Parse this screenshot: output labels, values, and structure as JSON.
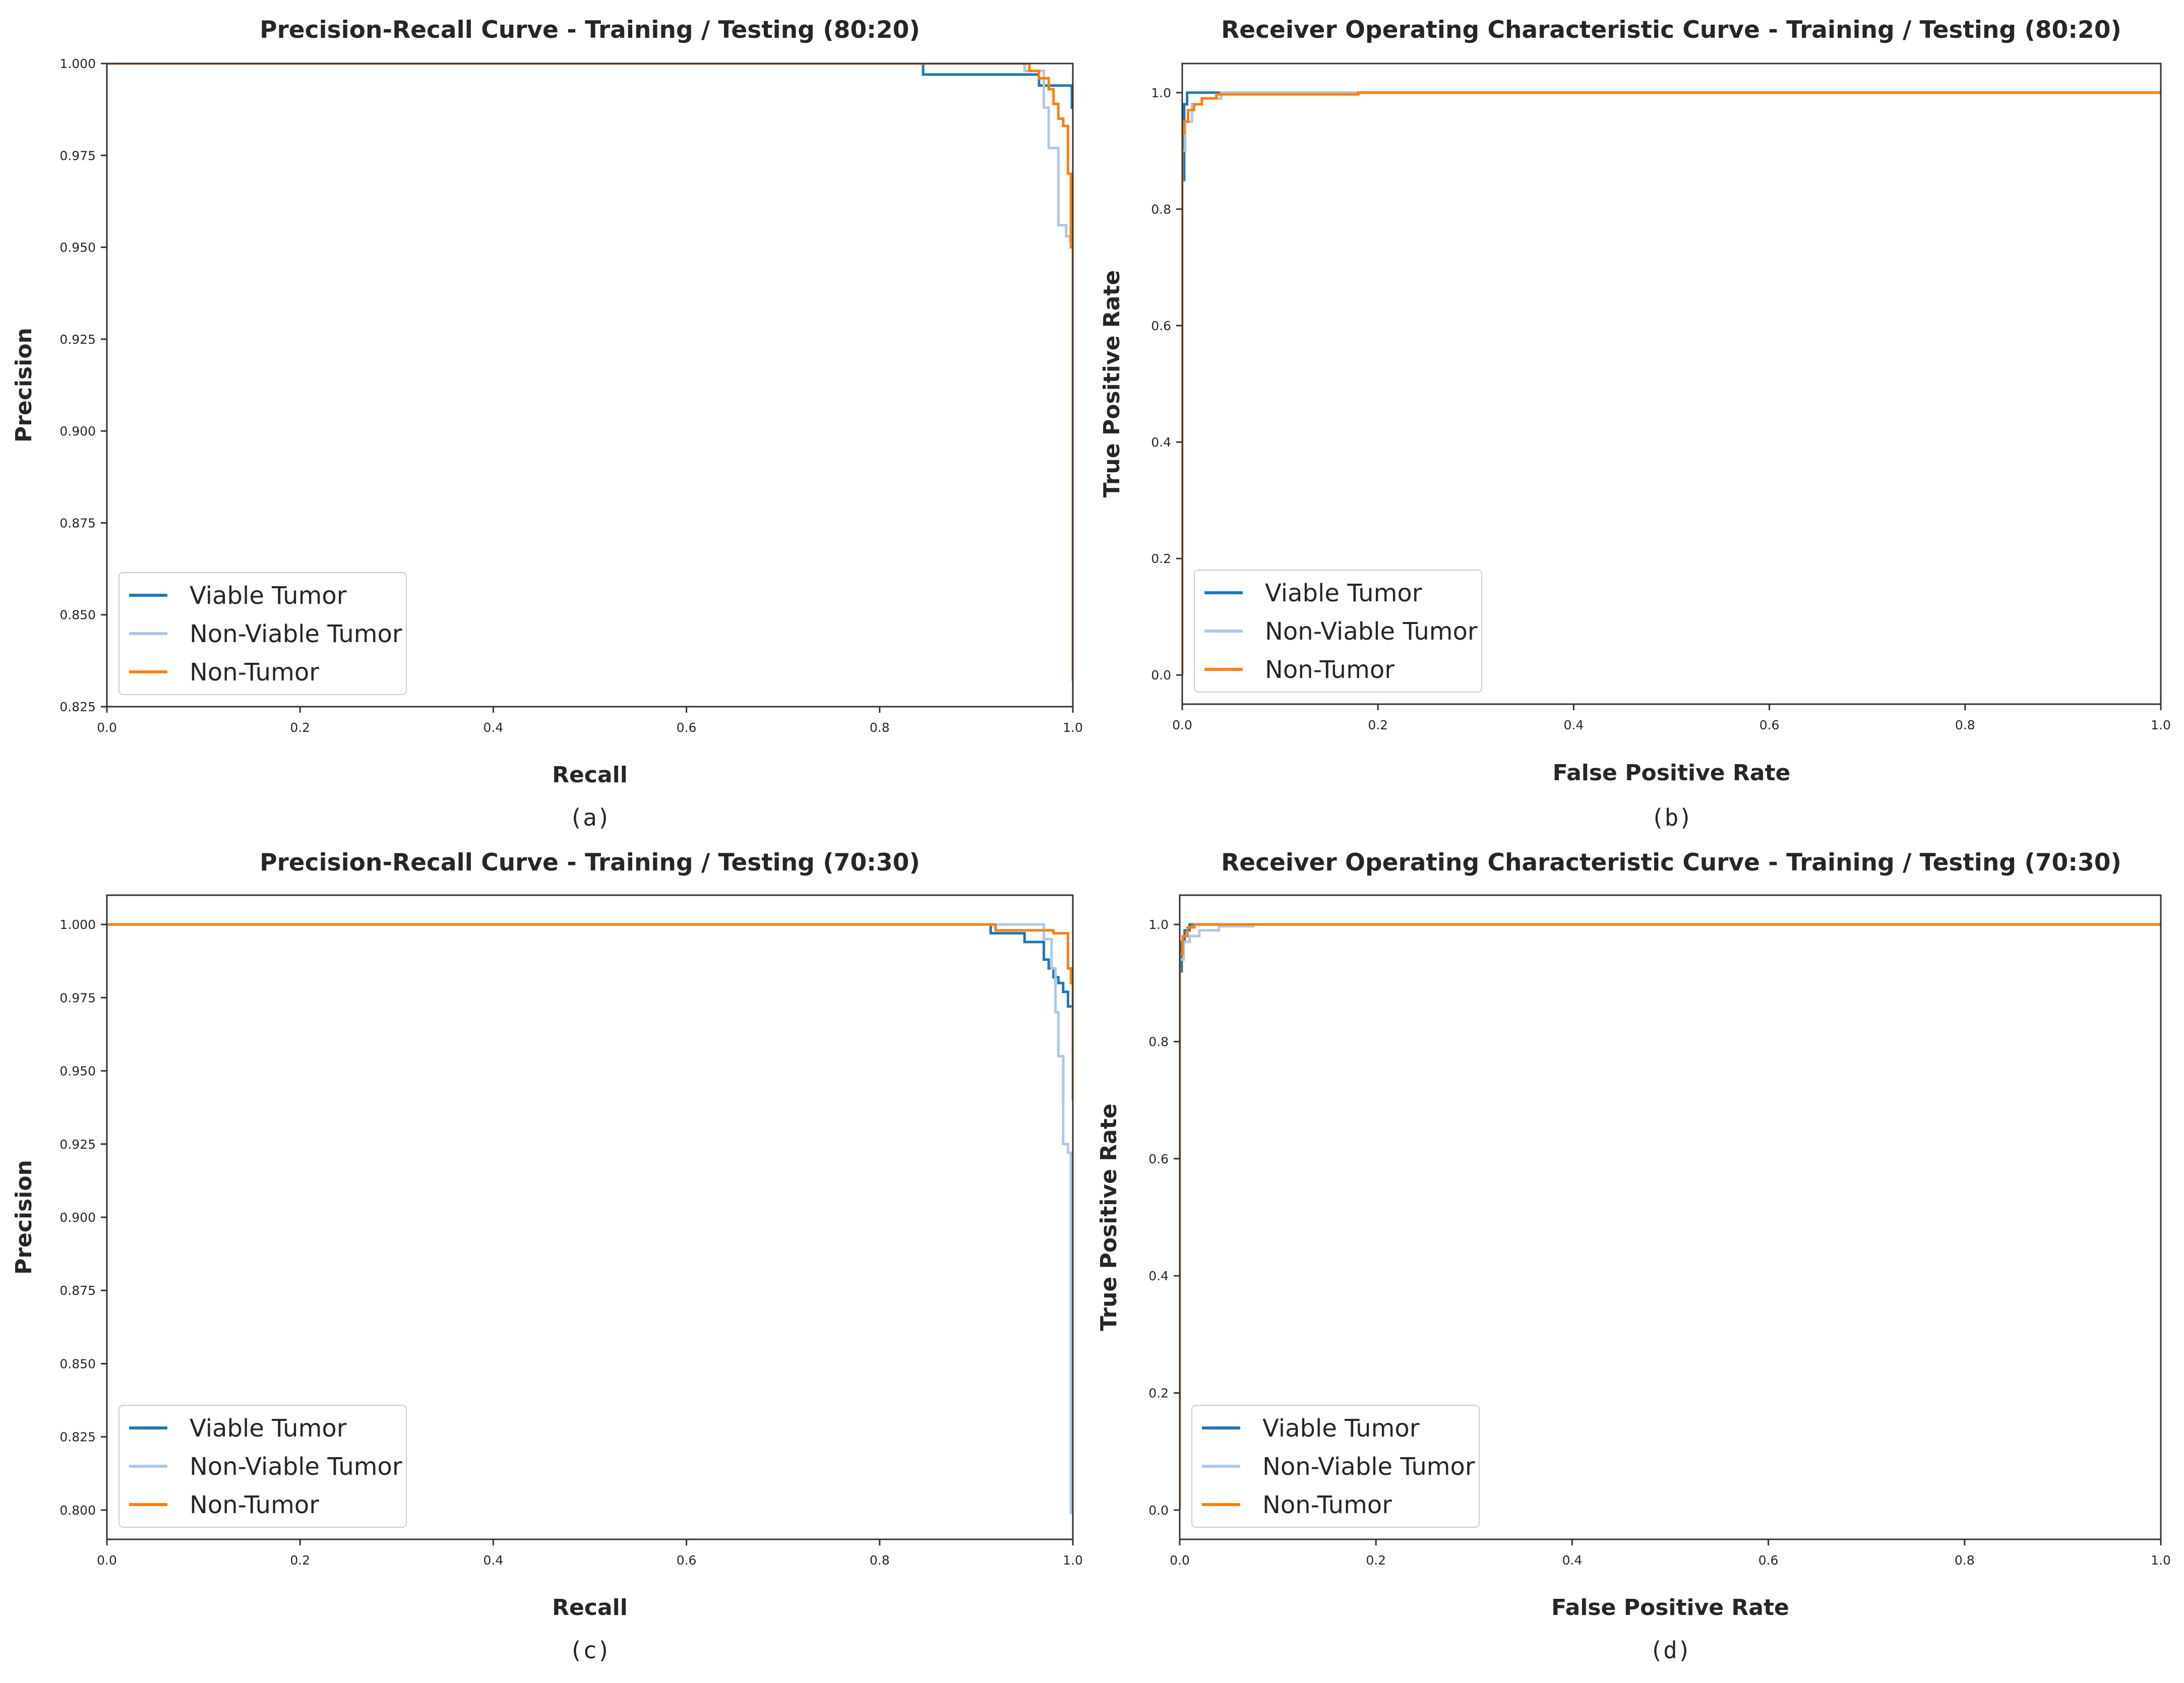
{
  "colors": {
    "viable": "#1f77b4",
    "nonviable": "#aec7e8",
    "nontumor": "#ff7f0e"
  },
  "chart_data": [
    {
      "type": "line",
      "title": "Precision-Recall Curve - Training / Testing (80:20)",
      "caption": "(a)",
      "xlabel": "Recall",
      "ylabel": "Precision",
      "xlim": [
        0,
        1
      ],
      "ylim": [
        0.825,
        1.0
      ],
      "xticks": [
        "0.0",
        "0.2",
        "0.4",
        "0.6",
        "0.8",
        "1.0"
      ],
      "yticks": [
        "0.825",
        "0.850",
        "0.875",
        "0.900",
        "0.925",
        "0.950",
        "0.975",
        "1.000"
      ],
      "legend_position": "lower-left",
      "series": [
        {
          "name": "Viable Tumor",
          "color_key": "viable",
          "x": [
            0,
            0.845,
            0.845,
            0.965,
            0.965,
            0.999,
            0.999,
            1.0
          ],
          "y": [
            1.0,
            1.0,
            0.997,
            0.997,
            0.994,
            0.994,
            0.988,
            0.988
          ]
        },
        {
          "name": "Non-Viable Tumor",
          "color_key": "nonviable",
          "x": [
            0,
            0.95,
            0.95,
            0.97,
            0.97,
            0.975,
            0.975,
            0.985,
            0.985,
            0.993,
            0.993,
            0.997,
            0.997,
            1.0
          ],
          "y": [
            1.0,
            1.0,
            0.998,
            0.998,
            0.988,
            0.988,
            0.977,
            0.977,
            0.956,
            0.956,
            0.953,
            0.953,
            0.952,
            0.952
          ]
        },
        {
          "name": "Non-Tumor",
          "color_key": "nontumor",
          "x": [
            0,
            0.955,
            0.955,
            0.965,
            0.965,
            0.975,
            0.975,
            0.98,
            0.98,
            0.985,
            0.985,
            0.99,
            0.99,
            0.995,
            0.995,
            0.998,
            0.998,
            1.0,
            1.0,
            1.0
          ],
          "y": [
            1.0,
            1.0,
            0.998,
            0.998,
            0.996,
            0.996,
            0.993,
            0.993,
            0.989,
            0.989,
            0.985,
            0.985,
            0.983,
            0.983,
            0.97,
            0.97,
            0.95,
            0.95,
            0.935,
            0.832
          ]
        }
      ]
    },
    {
      "type": "line",
      "title": "Receiver Operating Characteristic Curve - Training / Testing (80:20)",
      "caption": "(b)",
      "xlabel": "False Positive Rate",
      "ylabel": "True Positive Rate",
      "xlim": [
        0,
        1
      ],
      "ylim": [
        -0.05,
        1.05
      ],
      "xticks": [
        "0.0",
        "0.2",
        "0.4",
        "0.6",
        "0.8",
        "1.0"
      ],
      "yticks": [
        "0.0",
        "0.2",
        "0.4",
        "0.6",
        "0.8",
        "1.0"
      ],
      "legend_position": "lower-left",
      "series": [
        {
          "name": "Viable Tumor",
          "color_key": "viable",
          "x": [
            0,
            0,
            0.002,
            0.002,
            0.005,
            0.005,
            1.0
          ],
          "y": [
            0,
            0.85,
            0.85,
            0.98,
            0.98,
            1.0,
            1.0
          ]
        },
        {
          "name": "Non-Viable Tumor",
          "color_key": "nonviable",
          "x": [
            0,
            0,
            0.003,
            0.003,
            0.01,
            0.01,
            0.02,
            0.02,
            0.04,
            0.04,
            1.0
          ],
          "y": [
            0,
            0.9,
            0.9,
            0.95,
            0.95,
            0.98,
            0.98,
            0.99,
            0.99,
            1.0,
            1.0
          ]
        },
        {
          "name": "Non-Tumor",
          "color_key": "nontumor",
          "x": [
            0,
            0,
            0.002,
            0.002,
            0.006,
            0.006,
            0.012,
            0.012,
            0.02,
            0.02,
            0.035,
            0.035,
            0.18,
            0.18,
            1.0
          ],
          "y": [
            0,
            0.93,
            0.93,
            0.95,
            0.95,
            0.97,
            0.97,
            0.98,
            0.98,
            0.99,
            0.99,
            0.997,
            0.997,
            1.0,
            1.0
          ]
        }
      ]
    },
    {
      "type": "line",
      "title": "Precision-Recall Curve - Training / Testing (70:30)",
      "caption": "(c)",
      "xlabel": "Recall",
      "ylabel": "Precision",
      "xlim": [
        0,
        1
      ],
      "ylim": [
        0.79,
        1.01
      ],
      "xticks": [
        "0.0",
        "0.2",
        "0.4",
        "0.6",
        "0.8",
        "1.0"
      ],
      "yticks": [
        "0.800",
        "0.825",
        "0.850",
        "0.875",
        "0.900",
        "0.925",
        "0.950",
        "0.975",
        "1.000"
      ],
      "legend_position": "lower-left",
      "series": [
        {
          "name": "Viable Tumor",
          "color_key": "viable",
          "x": [
            0,
            0.915,
            0.915,
            0.95,
            0.95,
            0.97,
            0.97,
            0.975,
            0.975,
            0.98,
            0.98,
            0.985,
            0.985,
            0.99,
            0.99,
            0.995,
            0.995,
            1.0
          ],
          "y": [
            1.0,
            1.0,
            0.997,
            0.997,
            0.994,
            0.994,
            0.988,
            0.988,
            0.985,
            0.985,
            0.982,
            0.982,
            0.98,
            0.98,
            0.977,
            0.977,
            0.972,
            0.972
          ]
        },
        {
          "name": "Non-Viable Tumor",
          "color_key": "nonviable",
          "x": [
            0,
            0.97,
            0.97,
            0.978,
            0.978,
            0.982,
            0.982,
            0.985,
            0.985,
            0.99,
            0.99,
            0.995,
            0.995,
            0.998,
            0.998,
            1.0
          ],
          "y": [
            1.0,
            1.0,
            0.995,
            0.995,
            0.985,
            0.985,
            0.97,
            0.97,
            0.955,
            0.955,
            0.925,
            0.925,
            0.922,
            0.922,
            0.799,
            0.799
          ]
        },
        {
          "name": "Non-Tumor",
          "color_key": "nontumor",
          "x": [
            0,
            0.92,
            0.92,
            0.98,
            0.98,
            0.995,
            0.995,
            0.998,
            0.998,
            1.0,
            1.0
          ],
          "y": [
            1.0,
            1.0,
            0.998,
            0.998,
            0.997,
            0.997,
            0.985,
            0.985,
            0.98,
            0.98,
            0.94
          ]
        }
      ]
    },
    {
      "type": "line",
      "title": "Receiver Operating Characteristic Curve - Training / Testing (70:30)",
      "caption": "(d)",
      "xlabel": "False Positive Rate",
      "ylabel": "True Positive Rate",
      "xlim": [
        0,
        1
      ],
      "ylim": [
        -0.05,
        1.05
      ],
      "xticks": [
        "0.0",
        "0.2",
        "0.4",
        "0.6",
        "0.8",
        "1.0"
      ],
      "yticks": [
        "0.0",
        "0.2",
        "0.4",
        "0.6",
        "0.8",
        "1.0"
      ],
      "legend_position": "lower-left",
      "series": [
        {
          "name": "Viable Tumor",
          "color_key": "viable",
          "x": [
            0,
            0,
            0.002,
            0.002,
            0.005,
            0.005,
            0.01,
            0.01,
            1.0
          ],
          "y": [
            0,
            0.92,
            0.92,
            0.97,
            0.97,
            0.99,
            0.99,
            1.0,
            1.0
          ]
        },
        {
          "name": "Non-Viable Tumor",
          "color_key": "nonviable",
          "x": [
            0,
            0,
            0.004,
            0.004,
            0.01,
            0.01,
            0.02,
            0.02,
            0.04,
            0.04,
            0.075,
            0.075,
            1.0
          ],
          "y": [
            0,
            0.94,
            0.94,
            0.97,
            0.97,
            0.98,
            0.98,
            0.99,
            0.99,
            0.997,
            0.997,
            1.0,
            1.0
          ]
        },
        {
          "name": "Non-Tumor",
          "color_key": "nontumor",
          "x": [
            0,
            0,
            0.003,
            0.003,
            0.008,
            0.008,
            0.015,
            0.015,
            1.0
          ],
          "y": [
            0,
            0.95,
            0.95,
            0.98,
            0.98,
            0.995,
            0.995,
            1.0,
            1.0
          ]
        }
      ]
    }
  ]
}
